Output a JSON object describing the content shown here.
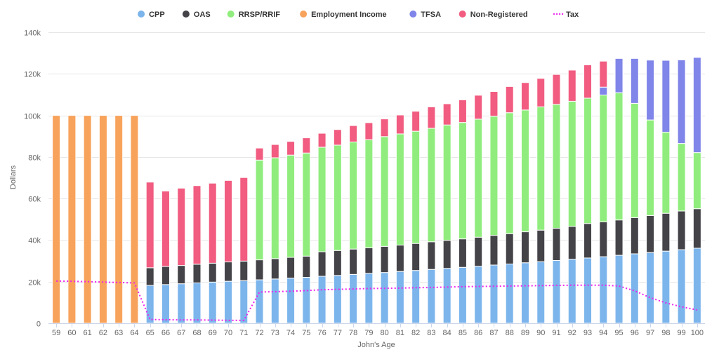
{
  "chart_data": {
    "type": "bar",
    "stacked": true,
    "xlabel": "John's Age",
    "ylabel": "Dollars",
    "ylim": [
      0,
      140000
    ],
    "y_ticks": [
      0,
      20000,
      40000,
      60000,
      80000,
      100000,
      120000,
      140000
    ],
    "y_tick_labels": [
      "0",
      "20k",
      "40k",
      "60k",
      "80k",
      "100k",
      "120k",
      "140k"
    ],
    "grid": true,
    "legend_position": "top",
    "categories": [
      "59",
      "60",
      "61",
      "62",
      "63",
      "64",
      "65",
      "66",
      "67",
      "68",
      "69",
      "70",
      "71",
      "72",
      "73",
      "74",
      "75",
      "76",
      "77",
      "78",
      "79",
      "80",
      "81",
      "82",
      "83",
      "84",
      "85",
      "86",
      "87",
      "88",
      "89",
      "90",
      "91",
      "92",
      "93",
      "94",
      "95",
      "96",
      "97",
      "98",
      "99",
      "100"
    ],
    "series": [
      {
        "name": "CPP",
        "color": "#7cb5ec",
        "kind": "bar",
        "values": [
          0,
          0,
          0,
          0,
          0,
          0,
          18200,
          18600,
          19000,
          19400,
          19800,
          20200,
          20500,
          20900,
          21300,
          21700,
          22100,
          22600,
          23000,
          23500,
          24000,
          24400,
          24900,
          25400,
          25900,
          26400,
          26900,
          27400,
          28000,
          28500,
          29100,
          29600,
          30200,
          30800,
          31400,
          32000,
          32700,
          33400,
          34000,
          34700,
          35400,
          36100
        ]
      },
      {
        "name": "OAS",
        "color": "#434348",
        "kind": "bar",
        "values": [
          0,
          0,
          0,
          0,
          0,
          0,
          8500,
          8700,
          8800,
          9000,
          9100,
          9300,
          9400,
          9600,
          9800,
          10000,
          10200,
          11800,
          12000,
          12200,
          12300,
          12600,
          12700,
          13000,
          13300,
          13500,
          13700,
          14000,
          14300,
          14600,
          14900,
          15200,
          15500,
          15800,
          16600,
          16800,
          17000,
          17400,
          17800,
          18200,
          18600,
          19000
        ]
      },
      {
        "name": "RRSP/RRIF",
        "color": "#90ed7d",
        "kind": "bar",
        "values": [
          0,
          0,
          0,
          0,
          0,
          0,
          0,
          0,
          0,
          0,
          0,
          0,
          0,
          48000,
          48500,
          49200,
          49600,
          50300,
          50700,
          51500,
          52000,
          52800,
          53500,
          54000,
          54600,
          55500,
          56000,
          56800,
          57300,
          58200,
          58600,
          59300,
          59600,
          60200,
          60300,
          61000,
          61200,
          55000,
          46000,
          39000,
          32500,
          27000
        ]
      },
      {
        "name": "Employment Income",
        "color": "#f7a35c",
        "kind": "bar",
        "values": [
          100000,
          100000,
          100000,
          100000,
          100000,
          100000,
          0,
          0,
          0,
          0,
          0,
          0,
          0,
          0,
          0,
          0,
          0,
          0,
          0,
          0,
          0,
          0,
          0,
          0,
          0,
          0,
          0,
          0,
          0,
          0,
          0,
          0,
          0,
          0,
          0,
          0,
          0,
          0,
          0,
          0,
          0,
          0
        ]
      },
      {
        "name": "TFSA",
        "color": "#8085e9",
        "kind": "bar",
        "values": [
          0,
          0,
          0,
          0,
          0,
          0,
          0,
          0,
          0,
          0,
          0,
          0,
          0,
          0,
          0,
          0,
          0,
          0,
          0,
          0,
          0,
          0,
          0,
          0,
          0,
          0,
          0,
          0,
          0,
          0,
          0,
          0,
          0,
          0,
          0,
          3800,
          16500,
          21600,
          28800,
          34600,
          40200,
          45800
        ]
      },
      {
        "name": "Non-Registered",
        "color": "#f15c80",
        "kind": "bar",
        "values": [
          0,
          0,
          0,
          0,
          0,
          0,
          41200,
          36300,
          37200,
          37800,
          38500,
          39200,
          40200,
          5800,
          6400,
          6600,
          7300,
          6700,
          7500,
          7900,
          8200,
          8500,
          9100,
          9600,
          10300,
          10200,
          10900,
          11500,
          11900,
          12600,
          13200,
          13700,
          14400,
          15000,
          16000,
          12500,
          0,
          0,
          0,
          0,
          0,
          0
        ]
      },
      {
        "name": "Tax",
        "color": "#ee22ee",
        "kind": "line",
        "values": [
          20300,
          20200,
          20000,
          19800,
          19600,
          19400,
          1800,
          1700,
          1600,
          1600,
          1500,
          1400,
          1400,
          15000,
          15200,
          15400,
          15700,
          16100,
          16300,
          16500,
          16700,
          16800,
          16900,
          17100,
          17200,
          17400,
          17600,
          17700,
          17800,
          17900,
          18000,
          18100,
          18200,
          18300,
          18300,
          18300,
          17900,
          15600,
          12300,
          9800,
          7900,
          6400
        ]
      }
    ]
  }
}
